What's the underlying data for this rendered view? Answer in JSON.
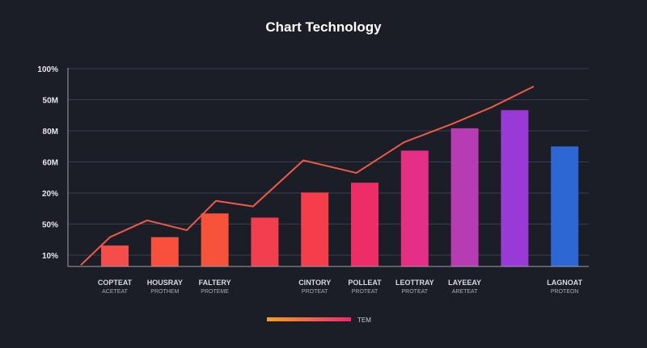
{
  "chart_data": {
    "type": "bar",
    "title": "Chart Technology",
    "y_ticks": [
      "10%",
      "50%",
      "20%",
      "60M",
      "80M",
      "50M",
      "100%"
    ],
    "ylim": [
      0,
      7
    ],
    "grid": true,
    "categories": [
      {
        "name": "COPTEAT",
        "sub": "ACETEAT"
      },
      {
        "name": "HOUSRAY",
        "sub": "PROTHEM"
      },
      {
        "name": "FALTERY",
        "sub": "PROTEME"
      },
      {
        "name": "",
        "sub": ""
      },
      {
        "name": "CINTORY",
        "sub": "PROTEAT"
      },
      {
        "name": "POLLEAT",
        "sub": "PROTEAT"
      },
      {
        "name": "LEOTTRAY",
        "sub": "PROTEAT"
      },
      {
        "name": "LAYEEAY",
        "sub": "ARETEAT"
      },
      {
        "name": "",
        "sub": ""
      },
      {
        "name": "LAGNOAT",
        "sub": "PROTEON"
      }
    ],
    "series": [
      {
        "type": "bar",
        "values": [
          0.75,
          1.05,
          1.9,
          1.75,
          2.65,
          3.0,
          4.15,
          4.95,
          5.6,
          4.3
        ],
        "colors": [
          "#f44d4b",
          "#f8503c",
          "#f7523a",
          "#f23e4d",
          "#f53d4b",
          "#ee2d66",
          "#e72e86",
          "#b73bb2",
          "#9a3ad6",
          "#2d67d4"
        ]
      },
      {
        "type": "line",
        "x": [
          0.0,
          0.55,
          1.25,
          2.0,
          2.55,
          3.25,
          4.2,
          5.2,
          6.1,
          7.0,
          7.75,
          8.55
        ],
        "values": [
          0.05,
          1.05,
          1.65,
          1.3,
          2.35,
          2.15,
          3.8,
          3.35,
          4.45,
          5.1,
          5.7,
          6.45
        ],
        "color": "#ee5a4a"
      }
    ],
    "legend": {
      "position": "bottom",
      "label": "TEM",
      "colors": [
        "#f7a01e",
        "#ee2a6f"
      ]
    }
  }
}
